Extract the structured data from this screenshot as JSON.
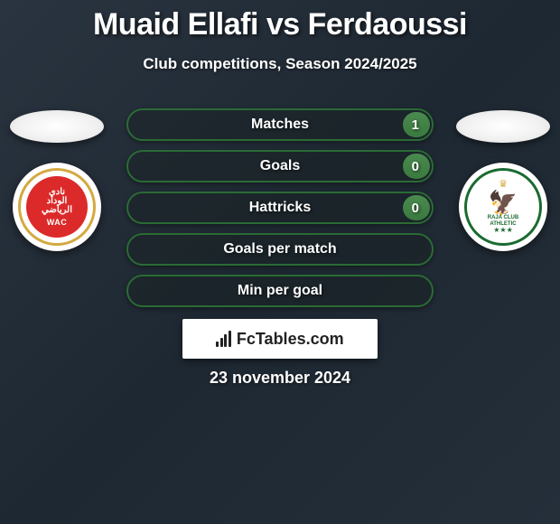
{
  "title": "Muaid Ellafi vs Ferdaoussi",
  "subtitle": "Club competitions, Season 2024/2025",
  "date": "23 november 2024",
  "brand": "FcTables.com",
  "colors": {
    "bg_start": "#2a3440",
    "bg_mid": "#1e2832",
    "bg_end": "#252f3a",
    "pill_border": "#2a6b35",
    "pill_fill": "#3a7a3f",
    "text": "#ffffff",
    "brand_text": "#222222"
  },
  "player1": {
    "club_short": "WAC",
    "club_name": "Wydad Casablanca",
    "badge_primary": "#dc2a2a",
    "badge_ring": "#d4a941"
  },
  "player2": {
    "club_short": "RAJA",
    "club_name": "Raja Club Athletic",
    "badge_primary": "#1a6b30",
    "badge_ring": "#1a6b30"
  },
  "stats": [
    {
      "label": "Matches",
      "value": "1",
      "fill_pct": 9
    },
    {
      "label": "Goals",
      "value": "0",
      "fill_pct": 9
    },
    {
      "label": "Hattricks",
      "value": "0",
      "fill_pct": 9
    },
    {
      "label": "Goals per match",
      "value": "",
      "fill_pct": 0
    },
    {
      "label": "Min per goal",
      "value": "",
      "fill_pct": 0
    }
  ],
  "styling": {
    "title_fontsize": 34,
    "subtitle_fontsize": 17,
    "stat_label_fontsize": 16,
    "pill_height": 36,
    "pill_radius": 18,
    "brand_box_width": 216,
    "font_family": "Arial"
  }
}
